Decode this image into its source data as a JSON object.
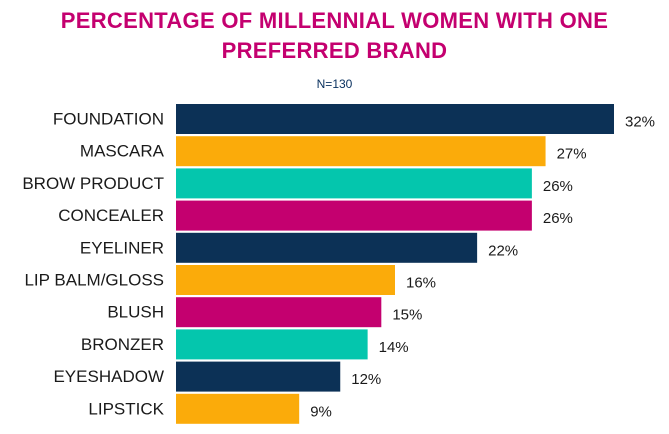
{
  "chart_data": {
    "type": "bar",
    "orientation": "horizontal",
    "title_lines": [
      "PERCENTAGE OF MILLENNIAL WOMEN WITH ONE",
      "PREFERRED BRAND"
    ],
    "subtitle": "N=130",
    "categories": [
      "FOUNDATION",
      "MASCARA",
      "BROW PRODUCT",
      "CONCEALER",
      "EYELINER",
      "LIP BALM/GLOSS",
      "BLUSH",
      "BRONZER",
      "EYESHADOW",
      "LIPSTICK"
    ],
    "values": [
      32,
      27,
      26,
      26,
      22,
      16,
      15,
      14,
      12,
      9
    ],
    "value_labels": [
      "32%",
      "27%",
      "26%",
      "26%",
      "22%",
      "16%",
      "15%",
      "14%",
      "12%",
      "9%"
    ],
    "xlim": [
      0,
      32
    ],
    "grid": false,
    "legend": "none"
  },
  "colors": {
    "title": "#c4006f",
    "subtitle": "#0b3260",
    "text": "#1a1a1a",
    "bars": [
      "#0c3156",
      "#fbab0a",
      "#04c6ad",
      "#c4006f",
      "#0c3156",
      "#fbab0a",
      "#c4006f",
      "#04c6ad",
      "#0c3156",
      "#fbab0a"
    ]
  }
}
